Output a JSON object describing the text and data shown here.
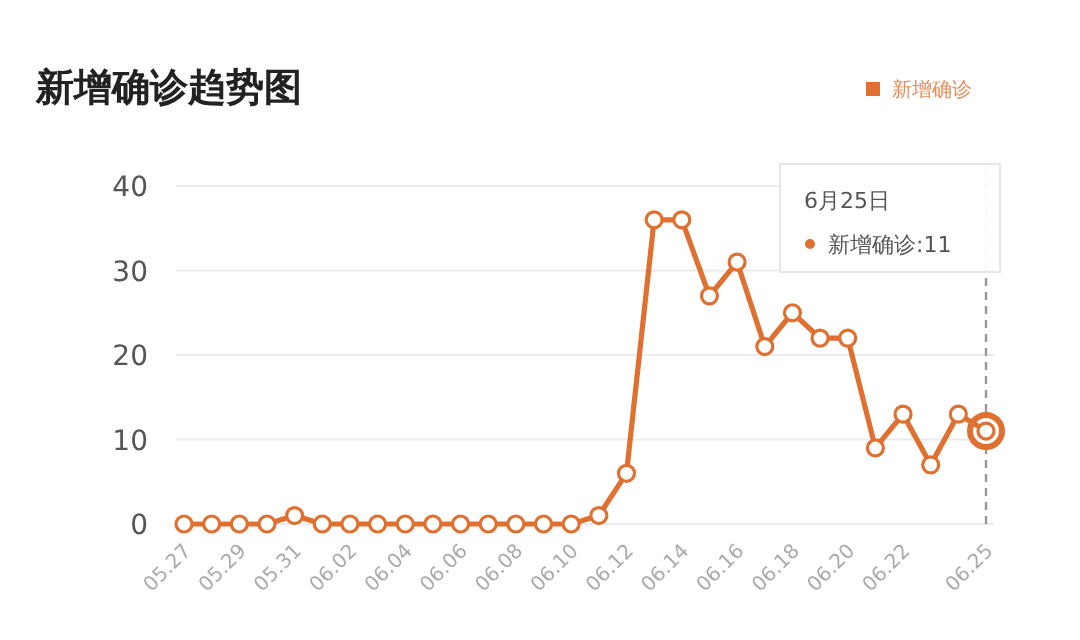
{
  "chart_data": {
    "type": "line",
    "title": "新增确诊趋势图",
    "categories": [
      "05.27",
      null,
      "05.29",
      null,
      "05.31",
      null,
      "06.02",
      null,
      "06.04",
      null,
      "06.06",
      null,
      "06.08",
      null,
      "06.10",
      null,
      "06.12",
      null,
      "06.14",
      null,
      "06.16",
      null,
      "06.18",
      null,
      "06.20",
      null,
      "06.22",
      null,
      null,
      "06.25"
    ],
    "series": [
      {
        "name": "新增确诊",
        "color": "#e07030",
        "values": [
          0,
          0,
          0,
          0,
          1,
          0,
          0,
          0,
          0,
          0,
          0,
          0,
          0,
          0,
          0,
          1,
          6,
          36,
          36,
          27,
          31,
          21,
          25,
          22,
          22,
          9,
          13,
          7,
          13,
          11
        ]
      }
    ],
    "ylim": [
      0,
      40
    ],
    "yticks": [
      0,
      10,
      20,
      30,
      40
    ],
    "grid": "y",
    "legend": "top right",
    "marker": "circle",
    "line_style": "solid",
    "annotations": [
      "6月25日",
      "新增确诊:11"
    ],
    "ref_lines": [
      {
        "axis": "x",
        "value": "06.25",
        "color": "#999999",
        "line_style": "dashed"
      }
    ]
  }
}
